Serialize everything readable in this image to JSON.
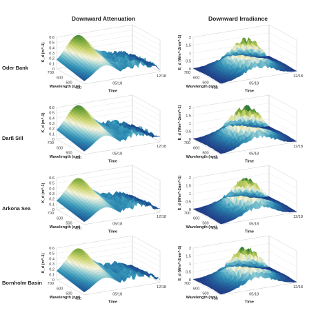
{
  "figure": {
    "columns": [
      "Downward Attenuation",
      "Downward Irradiance"
    ],
    "rows": [
      "Oder Bank",
      "Darß Sill",
      "Arkona Sea",
      "Bornholm Basin"
    ]
  },
  "chart_data": [
    {
      "type": "surface",
      "panel": "Oder Bank - Downward Attenuation",
      "row": "Oder Bank",
      "column": "Downward Attenuation",
      "quantity": "kd",
      "ylabel": "K_d (m^-1)",
      "zlim": [
        0,
        0.6
      ],
      "z_ticks": [
        "0",
        "0.1",
        "0.2",
        "0.3",
        "0.4",
        "0.5",
        "0.6"
      ],
      "x_label": "Wavelength (nm)",
      "x_ticks": [
        "700",
        "600",
        "500",
        "400"
      ],
      "t_label": "Time",
      "t_ticks": [
        "05/18",
        "12/18"
      ],
      "peak": 0.55
    },
    {
      "type": "surface",
      "panel": "Oder Bank - Downward Irradiance",
      "row": "Oder Bank",
      "column": "Downward Irradiance",
      "quantity": "ed",
      "ylabel": "E_d (Wm^-2nm^-1)",
      "zlim": [
        0,
        2
      ],
      "z_ticks": [
        "0",
        "0.5",
        "1",
        "1.5",
        "2"
      ],
      "x_label": "Wavelength (nm)",
      "x_ticks": [
        "700",
        "600",
        "500",
        "400"
      ],
      "t_label": "Time",
      "t_ticks": [
        "05/18",
        "12/18"
      ],
      "peak": 1.9
    },
    {
      "type": "surface",
      "panel": "Darß Sill - Downward Attenuation",
      "row": "Darß Sill",
      "column": "Downward Attenuation",
      "quantity": "kd",
      "ylabel": "K_d (m^-1)",
      "zlim": [
        0,
        0.6
      ],
      "z_ticks": [
        "0",
        "0.1",
        "0.2",
        "0.3",
        "0.4",
        "0.5",
        "0.6"
      ],
      "x_label": "Wavelength (nm)",
      "x_ticks": [
        "700",
        "600",
        "500",
        "400"
      ],
      "t_label": "Time",
      "t_ticks": [
        "05/18",
        "12/18"
      ],
      "peak": 0.55
    },
    {
      "type": "surface",
      "panel": "Darß Sill - Downward Irradiance",
      "row": "Darß Sill",
      "column": "Downward Irradiance",
      "quantity": "ed",
      "ylabel": "E_d (Wm^-2nm^-1)",
      "zlim": [
        0,
        2
      ],
      "z_ticks": [
        "0",
        "0.5",
        "1",
        "1.5",
        "2"
      ],
      "x_label": "Wavelength (nm)",
      "x_ticks": [
        "700",
        "600",
        "500",
        "400"
      ],
      "t_label": "Time",
      "t_ticks": [
        "05/18",
        "12/18"
      ],
      "peak": 2.0
    },
    {
      "type": "surface",
      "panel": "Arkona Sea - Downward Attenuation",
      "row": "Arkona Sea",
      "column": "Downward Attenuation",
      "quantity": "kd",
      "ylabel": "K_d (m^-1)",
      "zlim": [
        0,
        0.6
      ],
      "z_ticks": [
        "0",
        "0.1",
        "0.2",
        "0.3",
        "0.4",
        "0.5",
        "0.6"
      ],
      "x_label": "Wavelength (nm)",
      "x_ticks": [
        "700",
        "600",
        "500",
        "400"
      ],
      "t_label": "Time",
      "t_ticks": [
        "05/18",
        "12/18"
      ],
      "peak": 0.5
    },
    {
      "type": "surface",
      "panel": "Arkona Sea - Downward Irradiance",
      "row": "Arkona Sea",
      "column": "Downward Irradiance",
      "quantity": "ed",
      "ylabel": "E_d (Wm^-2nm^-1)",
      "zlim": [
        0,
        2
      ],
      "z_ticks": [
        "0",
        "0.5",
        "1",
        "1.5",
        "2"
      ],
      "x_label": "Wavelength (nm)",
      "x_ticks": [
        "700",
        "600",
        "500",
        "400"
      ],
      "t_label": "Time",
      "t_ticks": [
        "05/18",
        "12/18"
      ],
      "peak": 1.9
    },
    {
      "type": "surface",
      "panel": "Bornholm Basin - Downward Attenuation",
      "row": "Bornholm Basin",
      "column": "Downward Attenuation",
      "quantity": "kd",
      "ylabel": "K_d (m^-1)",
      "zlim": [
        0,
        0.6
      ],
      "z_ticks": [
        "0",
        "0.1",
        "0.2",
        "0.3",
        "0.4",
        "0.5",
        "0.6"
      ],
      "x_label": "Wavelength (nm)",
      "x_ticks": [
        "700",
        "600",
        "500",
        "400"
      ],
      "t_label": "Time",
      "t_ticks": [
        "05/18",
        "12/18"
      ],
      "peak": 0.5
    },
    {
      "type": "surface",
      "panel": "Bornholm Basin - Downward Irradiance",
      "row": "Bornholm Basin",
      "column": "Downward Irradiance",
      "quantity": "ed",
      "ylabel": "E_d (Wm^-2nm^-1)",
      "zlim": [
        0,
        2
      ],
      "z_ticks": [
        "0",
        "0.5",
        "1",
        "1.5",
        "2"
      ],
      "x_label": "Wavelength (nm)",
      "x_ticks": [
        "700",
        "600",
        "500",
        "400"
      ],
      "t_label": "Time",
      "t_ticks": [
        "05/18",
        "12/18"
      ],
      "peak": 2.0
    }
  ],
  "colors": {
    "colormap": [
      "#1c2f7e",
      "#1f5f9a",
      "#2f8fb4",
      "#7fc4cf",
      "#f6f3dc",
      "#c9d26a",
      "#7aa83a",
      "#2e7a3b"
    ],
    "box": "#c8c8c8",
    "grid": "#e2e2e2",
    "text": "#222222"
  }
}
